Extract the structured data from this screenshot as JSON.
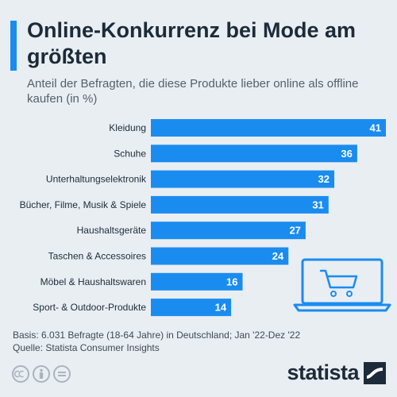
{
  "title": "Online-Konkurrenz bei Mode am größten",
  "subtitle": "Anteil der Befragten, die diese Produkte lieber online als offline kaufen (in %)",
  "chart_data": {
    "type": "bar",
    "orientation": "horizontal",
    "categories": [
      "Kleidung",
      "Schuhe",
      "Unterhaltungselektronik",
      "Bücher, Filme, Musik & Spiele",
      "Haushaltsgeräte",
      "Taschen & Accessoires",
      "Möbel & Haushaltswaren",
      "Sport- & Outdoor-Produkte"
    ],
    "values": [
      41,
      36,
      32,
      31,
      27,
      24,
      16,
      14
    ],
    "xlim": [
      0,
      41
    ],
    "grid": false,
    "legend": "none",
    "bar_color": "#1a8cf0",
    "label_color": "#ffffff"
  },
  "footer": {
    "basis": "Basis: 6.031 Befragte (18-64 Jahre) in Deutschland; Jan '22-Dez '22",
    "source": "Quelle: Statista Consumer Insights"
  },
  "brand": {
    "logo_text": "statista",
    "color": "#1c2b39"
  },
  "icons": {
    "illustration": "laptop-shopping-cart-icon",
    "license": [
      "cc-icon",
      "person-icon",
      "equals-icon"
    ]
  }
}
